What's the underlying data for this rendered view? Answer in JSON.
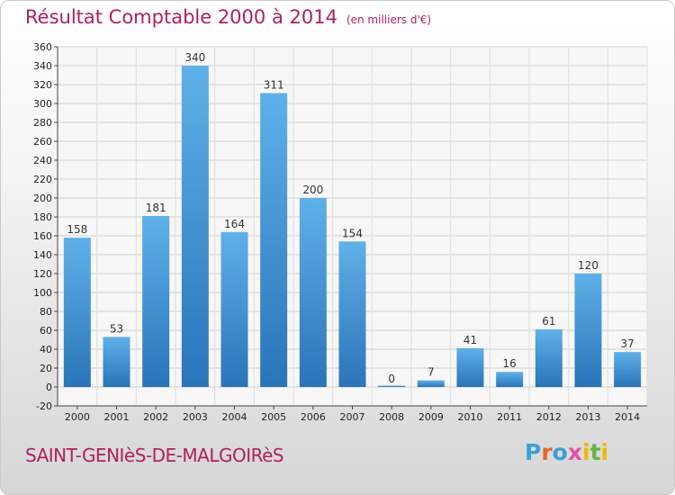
{
  "header": {
    "title": "Résultat Comptable 2000 à 2014",
    "unit": "(en milliers d'€)"
  },
  "footer": {
    "commune": "SAINT-GENIèS-DE-MALGOIRèS",
    "brand": "Proxiti",
    "brand_colors": [
      "#3aa0d8",
      "#e8662a",
      "#3aa0d8",
      "#e94f9f",
      "#f2b705",
      "#66b34a",
      "#f2b705"
    ]
  },
  "chart_data": {
    "type": "bar",
    "title": "Résultat Comptable 2000 à 2014",
    "subtitle": "(en milliers d'€)",
    "categories": [
      "2000",
      "2001",
      "2002",
      "2003",
      "2004",
      "2005",
      "2006",
      "2007",
      "2008",
      "2009",
      "2010",
      "2011",
      "2012",
      "2013",
      "2014"
    ],
    "values": [
      158,
      53,
      181,
      340,
      164,
      311,
      200,
      154,
      0,
      7,
      41,
      16,
      61,
      120,
      37
    ],
    "ylim": [
      -20,
      360
    ],
    "yticks": [
      -20,
      0,
      20,
      40,
      60,
      80,
      100,
      120,
      140,
      160,
      180,
      200,
      220,
      240,
      260,
      280,
      300,
      320,
      340,
      360
    ],
    "grid": true,
    "bar_color": "#3a8fd4",
    "bar_color_light": "#5fb0e8",
    "bar_color_dark": "#2a74b8"
  }
}
